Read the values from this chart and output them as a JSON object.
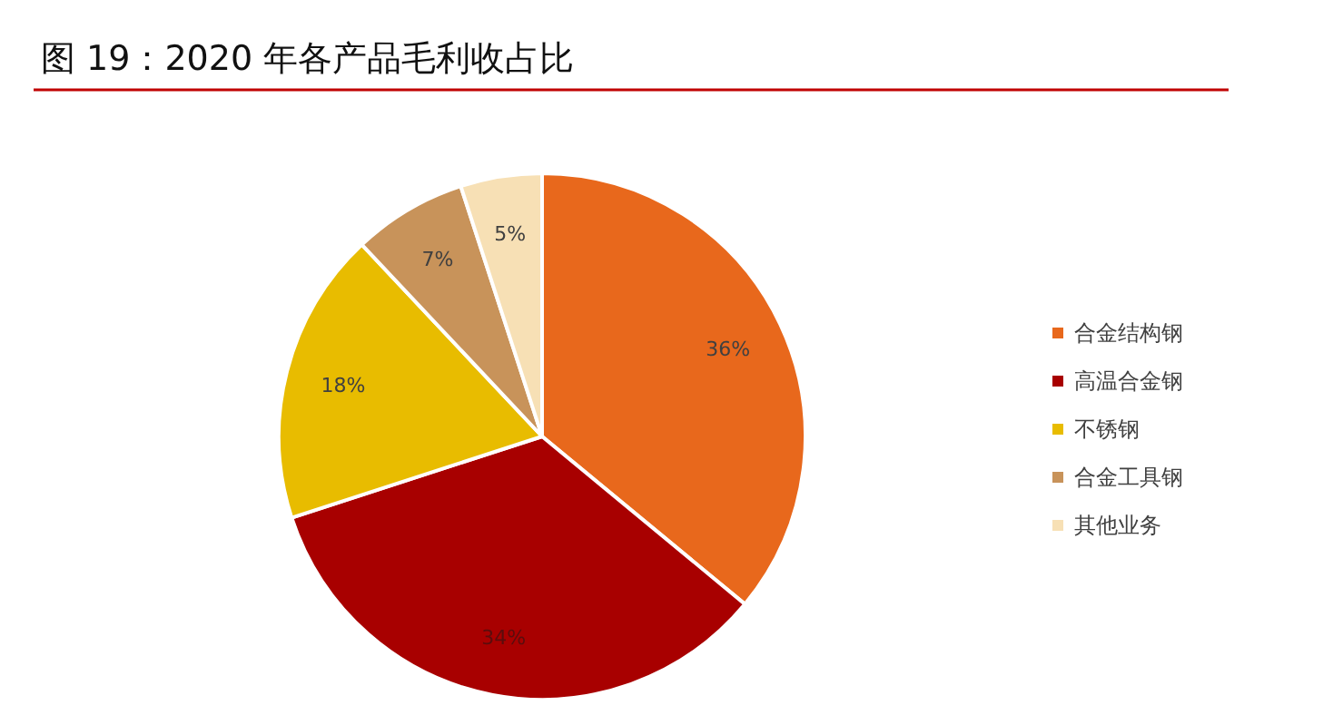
{
  "chart_data": {
    "type": "pie",
    "title": "图 19：2020 年各产品毛利收占比",
    "categories": [
      "合金结构钢",
      "高温合金钢",
      "不锈钢",
      "合金工具钢",
      "其他业务"
    ],
    "values": [
      36,
      34,
      18,
      7,
      5
    ],
    "colors": [
      "#e8681c",
      "#a80000",
      "#e8bc00",
      "#c8935a",
      "#f7e0b5"
    ],
    "value_labels": [
      "36%",
      "34%",
      "18%",
      "7%",
      "5%"
    ],
    "legend": "right"
  }
}
